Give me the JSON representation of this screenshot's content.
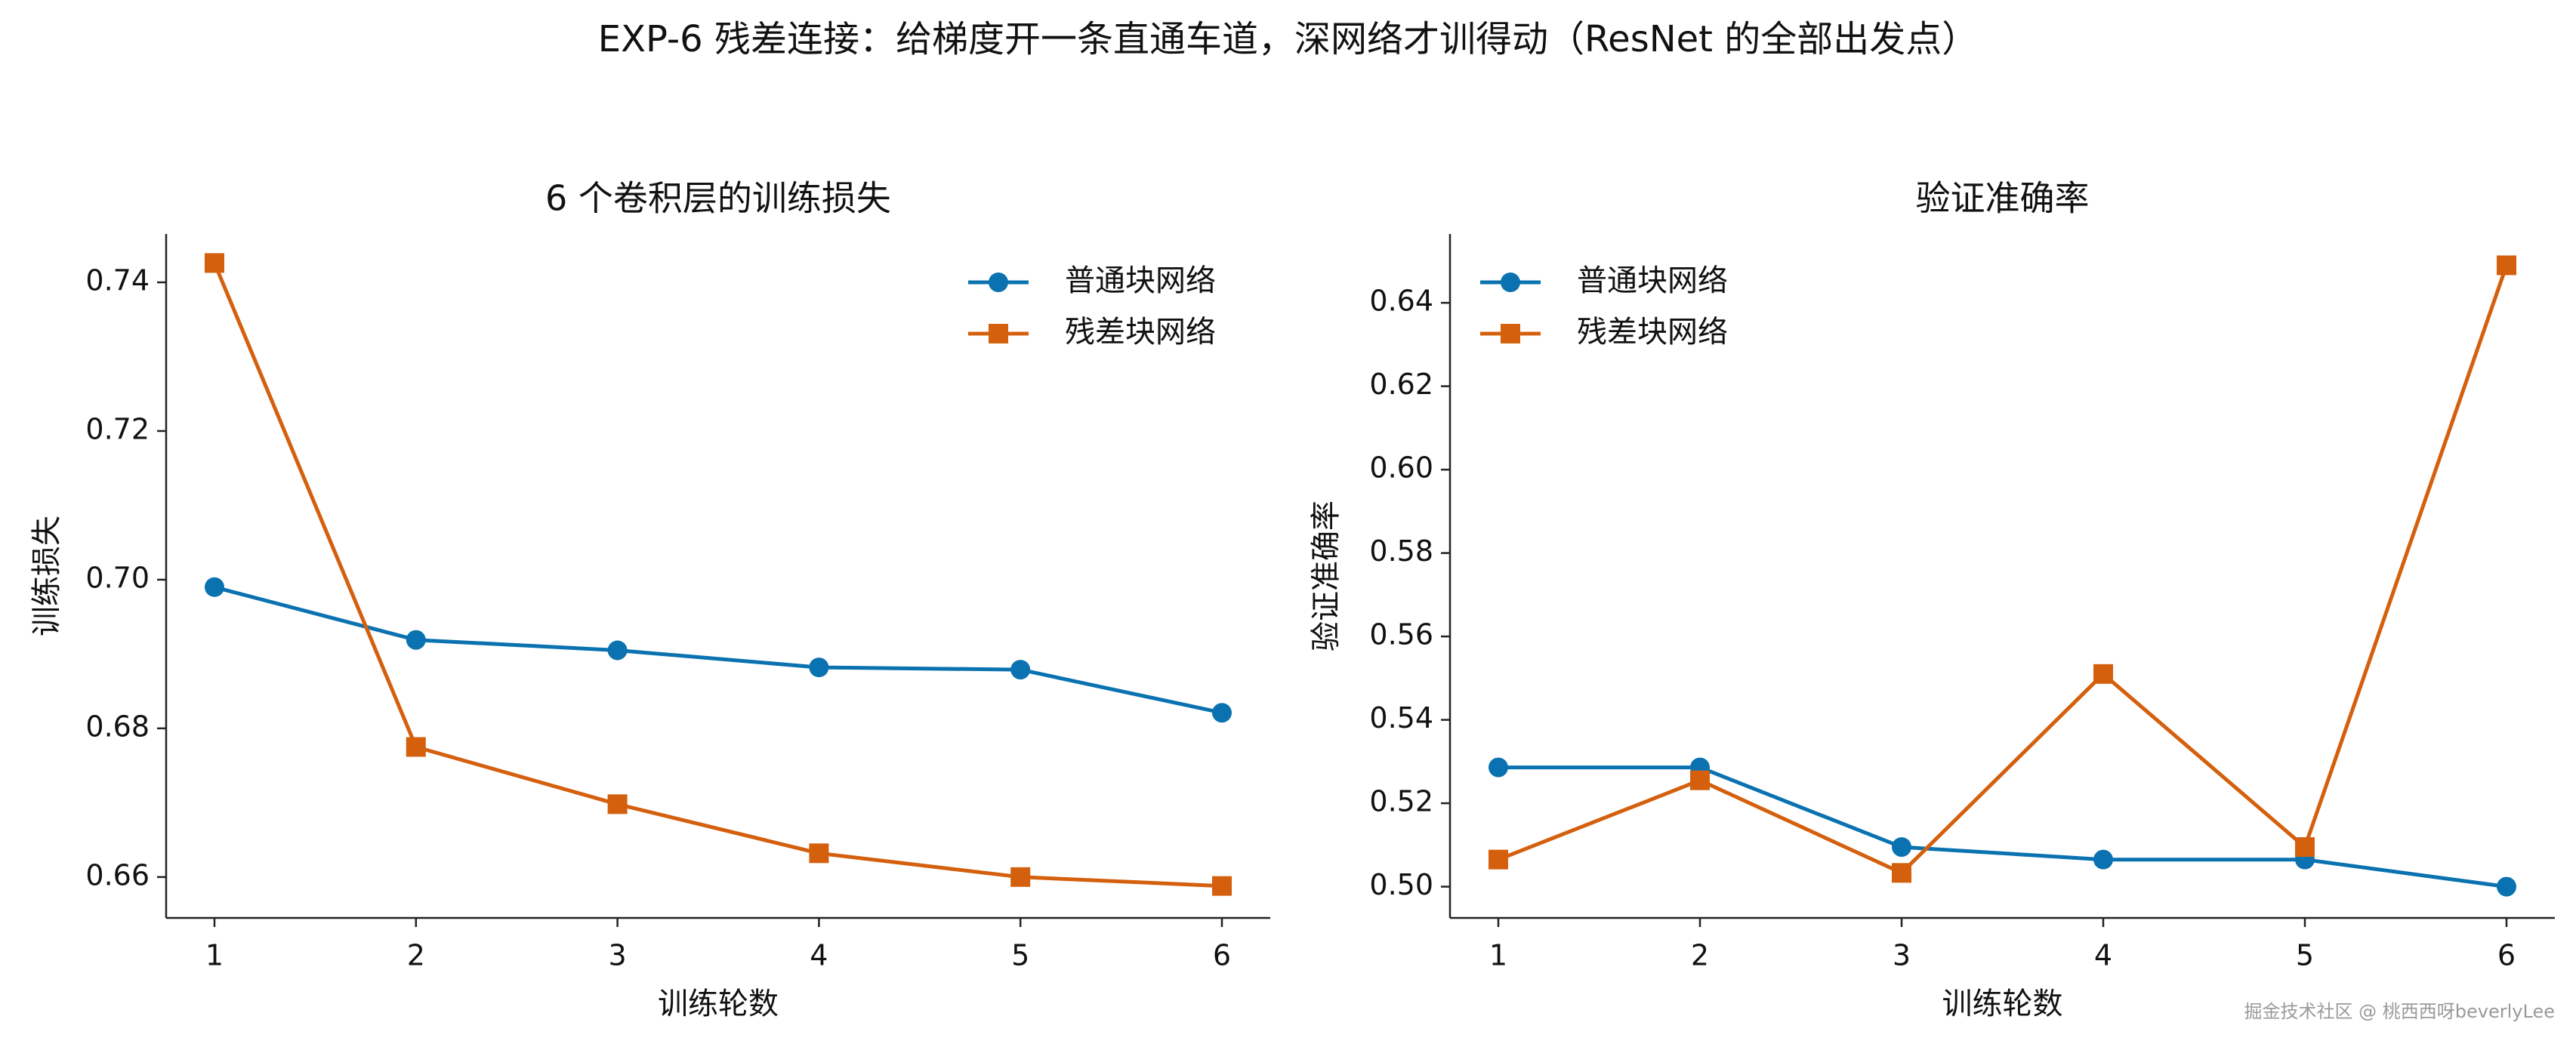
{
  "figure": {
    "suptitle": "EXP-6 残差连接：给梯度开一条直通车道，深网络才训得动（ResNet 的全部出发点）",
    "watermark": "掘金技术社区 @ 桃西西呀beverlyLee"
  },
  "colors": {
    "plain": "#0a72b0",
    "residual": "#d4600e",
    "axis": "#222222"
  },
  "chart_data": [
    {
      "type": "line",
      "title": "6 个卷积层的训练损失",
      "xlabel": "训练轮数",
      "ylabel": "训练损失",
      "categories": [
        1,
        2,
        3,
        4,
        5,
        6
      ],
      "ylim": [
        0.6545,
        0.7465
      ],
      "yticks": [
        0.66,
        0.68,
        0.7,
        0.72,
        0.74
      ],
      "ytick_labels": [
        "0.66",
        "0.68",
        "0.70",
        "0.72",
        "0.74"
      ],
      "grid": false,
      "legend": "upper right",
      "series": [
        {
          "name": "普通块网络",
          "marker": "circle",
          "color": "#0a72b0",
          "values": [
            0.699,
            0.6919,
            0.6905,
            0.6882,
            0.6879,
            0.6821
          ]
        },
        {
          "name": "残差块网络",
          "marker": "square",
          "color": "#d4600e",
          "values": [
            0.7426,
            0.6775,
            0.6698,
            0.6632,
            0.66,
            0.6588
          ]
        }
      ]
    },
    {
      "type": "line",
      "title": "验证准确率",
      "xlabel": "训练轮数",
      "ylabel": "验证准确率",
      "categories": [
        1,
        2,
        3,
        4,
        5,
        6
      ],
      "ylim": [
        0.4925,
        0.6565
      ],
      "yticks": [
        0.5,
        0.52,
        0.54,
        0.56,
        0.58,
        0.6,
        0.62,
        0.64
      ],
      "ytick_labels": [
        "0.50",
        "0.52",
        "0.54",
        "0.56",
        "0.58",
        "0.60",
        "0.62",
        "0.64"
      ],
      "grid": false,
      "legend": "upper left",
      "series": [
        {
          "name": "普通块网络",
          "marker": "circle",
          "color": "#0a72b0",
          "values": [
            0.5286,
            0.5286,
            0.5095,
            0.5065,
            0.5065,
            0.5
          ]
        },
        {
          "name": "残差块网络",
          "marker": "square",
          "color": "#d4600e",
          "values": [
            0.5065,
            0.5255,
            0.5033,
            0.551,
            0.5095,
            0.649
          ]
        }
      ]
    }
  ]
}
